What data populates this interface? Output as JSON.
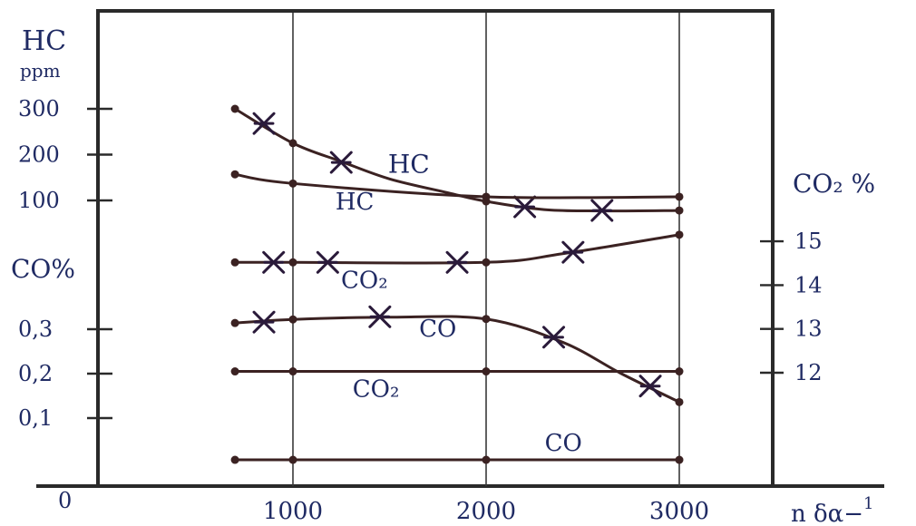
{
  "chart_data": {
    "type": "line",
    "x_ticks": [
      "1000",
      "2000",
      "3000"
    ],
    "origin_label": "0",
    "x_unit": "n δα−",
    "x_unit_exponent": "1",
    "left_axis": {
      "hc_title": "HC",
      "hc_unit": "ppm",
      "hc_ticks": [
        {
          "value": 300,
          "label": "300"
        },
        {
          "value": 200,
          "label": "200"
        },
        {
          "value": 100,
          "label": "100"
        }
      ],
      "co_title": "CO%",
      "co_ticks": [
        {
          "value": 0.3,
          "label": "0,3"
        },
        {
          "value": 0.2,
          "label": "0,2"
        },
        {
          "value": 0.1,
          "label": "0,1"
        }
      ]
    },
    "right_axis": {
      "title": "CO₂ %",
      "ticks": [
        {
          "value": 15,
          "label": "15"
        },
        {
          "value": 14,
          "label": "14"
        },
        {
          "value": 13,
          "label": "13"
        },
        {
          "value": 12,
          "label": "12"
        }
      ]
    },
    "series": [
      {
        "name": "HC",
        "axis": "hc",
        "marker": "cross",
        "points": [
          [
            700,
            300
          ],
          [
            1000,
            225
          ],
          [
            1250,
            185
          ],
          [
            1500,
            147
          ],
          [
            1800,
            117
          ],
          [
            2000,
            98
          ],
          [
            2300,
            80
          ],
          [
            2600,
            77
          ],
          [
            3000,
            78
          ]
        ],
        "markers": [
          [
            850,
            268
          ],
          [
            1250,
            183
          ],
          [
            2200,
            86
          ],
          [
            2600,
            78
          ]
        ]
      },
      {
        "name": "HC",
        "axis": "hc",
        "marker": "dot",
        "points": [
          [
            700,
            157
          ],
          [
            1000,
            137
          ],
          [
            2000,
            108
          ],
          [
            3000,
            108
          ]
        ],
        "markers": []
      },
      {
        "name": "CO₂",
        "axis": "co2",
        "marker": "cross",
        "points": [
          [
            700,
            14.52
          ],
          [
            1000,
            14.52
          ],
          [
            2000,
            14.52
          ],
          [
            2400,
            14.72
          ],
          [
            3000,
            15.15
          ]
        ],
        "markers": [
          [
            900,
            14.52
          ],
          [
            1180,
            14.52
          ],
          [
            1850,
            14.52
          ],
          [
            2450,
            14.75
          ]
        ]
      },
      {
        "name": "CO",
        "axis": "co",
        "marker": "cross",
        "points": [
          [
            700,
            0.314
          ],
          [
            1000,
            0.322
          ],
          [
            1500,
            0.327
          ],
          [
            2000,
            0.323
          ],
          [
            2400,
            0.27
          ],
          [
            2700,
            0.2
          ],
          [
            3000,
            0.136
          ]
        ],
        "markers": [
          [
            850,
            0.316
          ],
          [
            1450,
            0.328
          ],
          [
            2350,
            0.282
          ],
          [
            2850,
            0.172
          ]
        ]
      },
      {
        "name": "CO₂",
        "axis": "co2",
        "marker": "dot",
        "points": [
          [
            700,
            12.03
          ],
          [
            1000,
            12.03
          ],
          [
            2000,
            12.03
          ],
          [
            3000,
            12.03
          ]
        ],
        "markers": []
      },
      {
        "name": "CO",
        "axis": "co",
        "marker": "dot",
        "points": [
          [
            700,
            0.006
          ],
          [
            1000,
            0.006
          ],
          [
            2000,
            0.006
          ],
          [
            3000,
            0.006
          ]
        ],
        "markers": []
      }
    ],
    "series_labels": [
      {
        "text": "HC",
        "series": 0
      },
      {
        "text": "HC",
        "series": 1
      },
      {
        "text": "CO₂",
        "series": 2
      },
      {
        "text": "CO",
        "series": 3
      },
      {
        "text": "CO₂",
        "series": 4
      },
      {
        "text": "CO",
        "series": 5
      }
    ],
    "grid": true
  }
}
